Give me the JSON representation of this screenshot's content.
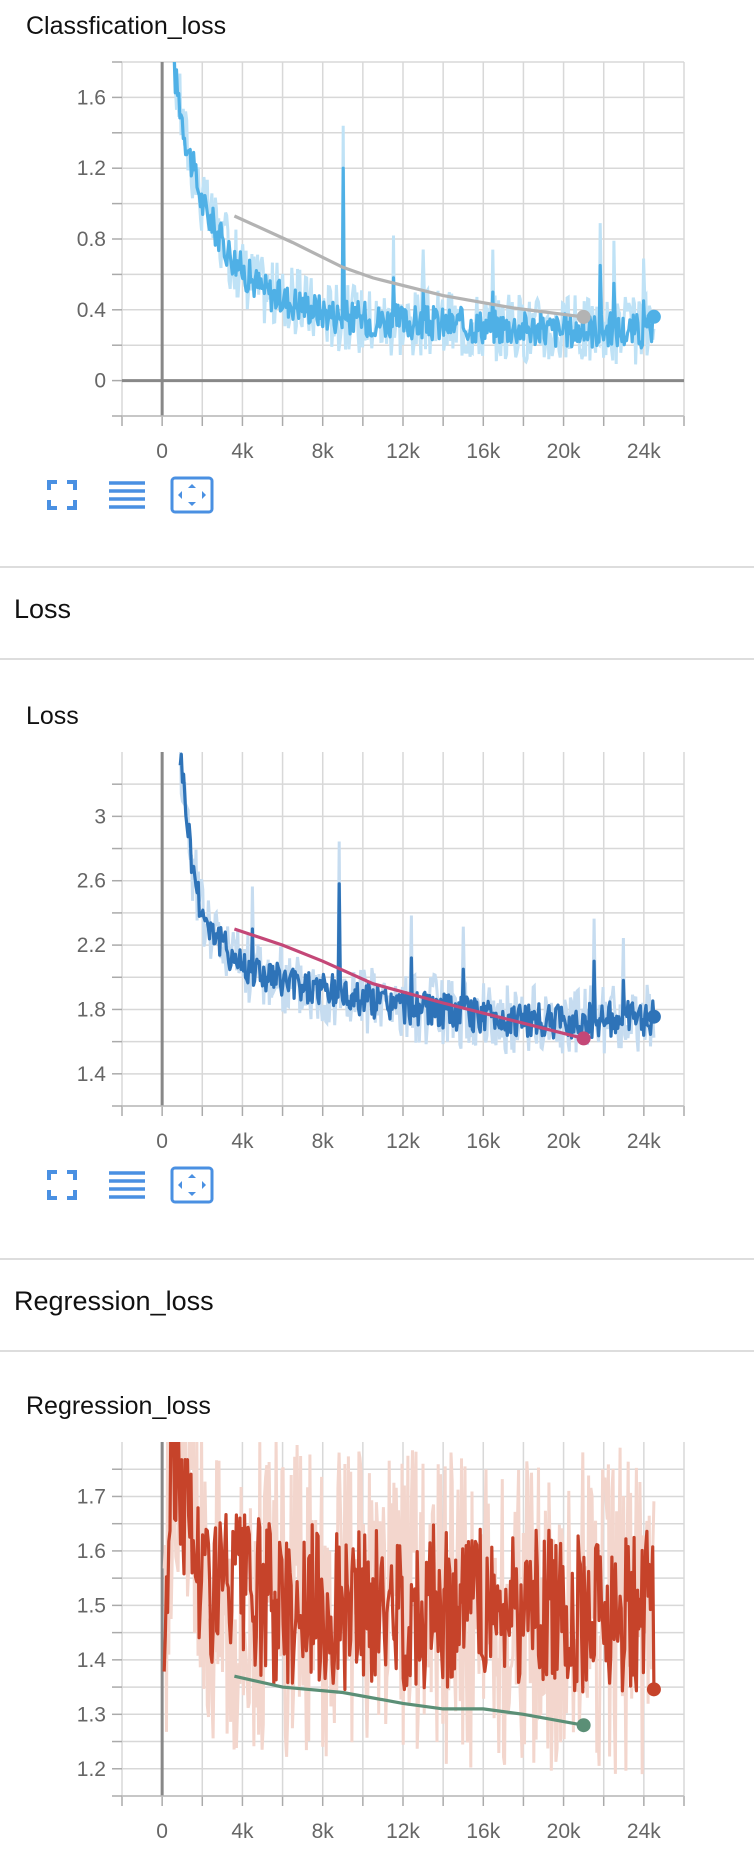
{
  "sections": [
    {
      "title": ""
    },
    {
      "title": "Loss"
    },
    {
      "title": "Regression_loss"
    }
  ],
  "chart_data": [
    {
      "type": "line",
      "title": "Classfication_loss",
      "x_ticks": [
        "0",
        "4k",
        "8k",
        "12k",
        "16k",
        "20k",
        "24k"
      ],
      "y_ticks": [
        "0",
        "0.4",
        "0.8",
        "1.2",
        "1.6"
      ],
      "ylim": [
        -0.2,
        1.8
      ],
      "xlim": [
        -2000,
        26000
      ],
      "colors": {
        "raw": "#4fb0e6",
        "faint": "#bfe2f6",
        "comparison": "#b3b3b3"
      },
      "series": [
        {
          "values": [
            [
              600,
              1.75
            ],
            [
              1200,
              1.35
            ],
            [
              2000,
              1.0
            ],
            [
              3000,
              0.78
            ],
            [
              4000,
              0.62
            ],
            [
              5000,
              0.52
            ],
            [
              6000,
              0.46
            ],
            [
              7000,
              0.43
            ],
            [
              8000,
              0.39
            ],
            [
              9000,
              0.36
            ],
            [
              10000,
              0.35
            ],
            [
              12000,
              0.33
            ],
            [
              14000,
              0.32
            ],
            [
              16000,
              0.31
            ],
            [
              18000,
              0.3
            ],
            [
              20000,
              0.28
            ],
            [
              22000,
              0.29
            ],
            [
              24000,
              0.28
            ],
            [
              24500,
              0.28
            ]
          ],
          "spikes": [
            [
              9000,
              1.2
            ],
            [
              11500,
              0.58
            ],
            [
              13000,
              0.5
            ],
            [
              16500,
              0.5
            ],
            [
              21800,
              0.65
            ],
            [
              22500,
              0.55
            ],
            [
              24000,
              0.45
            ]
          ]
        },
        {
          "values": [
            [
              3600,
              0.93
            ],
            [
              6500,
              0.78
            ],
            [
              9000,
              0.64
            ],
            [
              10500,
              0.58
            ],
            [
              14000,
              0.48
            ],
            [
              17500,
              0.41
            ],
            [
              21000,
              0.36
            ]
          ]
        }
      ]
    },
    {
      "type": "line",
      "title": "Loss",
      "x_ticks": [
        "0",
        "4k",
        "8k",
        "12k",
        "16k",
        "20k",
        "24k"
      ],
      "y_ticks": [
        "1.4",
        "1.8",
        "2.2",
        "2.6",
        "3"
      ],
      "ylim": [
        1.2,
        3.4
      ],
      "xlim": [
        -2000,
        26000
      ],
      "colors": {
        "raw": "#2e73b8",
        "faint": "#c6dcf0",
        "comparison": "#c44777"
      },
      "series": [
        {
          "values": [
            [
              900,
              3.4
            ],
            [
              1500,
              2.7
            ],
            [
              2000,
              2.4
            ],
            [
              3000,
              2.2
            ],
            [
              4000,
              2.08
            ],
            [
              6000,
              1.97
            ],
            [
              8000,
              1.92
            ],
            [
              10000,
              1.87
            ],
            [
              12000,
              1.82
            ],
            [
              14000,
              1.79
            ],
            [
              16000,
              1.76
            ],
            [
              18000,
              1.73
            ],
            [
              20000,
              1.72
            ],
            [
              22000,
              1.74
            ],
            [
              24000,
              1.74
            ],
            [
              24500,
              1.76
            ]
          ],
          "spikes": [
            [
              8800,
              2.58
            ],
            [
              4500,
              2.3
            ],
            [
              12400,
              2.12
            ],
            [
              15000,
              2.05
            ],
            [
              21500,
              2.1
            ],
            [
              23000,
              1.98
            ]
          ]
        },
        {
          "values": [
            [
              3600,
              2.3
            ],
            [
              6000,
              2.2
            ],
            [
              8000,
              2.1
            ],
            [
              10500,
              1.96
            ],
            [
              14000,
              1.84
            ],
            [
              17500,
              1.73
            ],
            [
              21000,
              1.62
            ]
          ]
        }
      ]
    },
    {
      "type": "line",
      "title": "Regression_loss",
      "x_ticks": [
        "0",
        "4k",
        "8k",
        "12k",
        "16k",
        "20k",
        "24k"
      ],
      "y_ticks": [
        "1.2",
        "1.3",
        "1.4",
        "1.5",
        "1.6",
        "1.7"
      ],
      "ylim": [
        1.15,
        1.8
      ],
      "xlim": [
        -2000,
        26000
      ],
      "colors": {
        "raw": "#c6432a",
        "faint": "#f3d6cd",
        "comparison": "#5b8f76"
      },
      "series": [
        {
          "values": [
            [
              100,
              1.42
            ],
            [
              500,
              1.8
            ],
            [
              2000,
              1.55
            ],
            [
              4000,
              1.52
            ],
            [
              6000,
              1.5
            ],
            [
              8000,
              1.5
            ],
            [
              10000,
              1.49
            ],
            [
              12000,
              1.49
            ],
            [
              14000,
              1.5
            ],
            [
              16000,
              1.5
            ],
            [
              18000,
              1.49
            ],
            [
              20000,
              1.49
            ],
            [
              22000,
              1.49
            ],
            [
              24000,
              1.49
            ],
            [
              24500,
              1.48
            ]
          ],
          "amplitude": 0.15
        },
        {
          "values": [
            [
              3600,
              1.37
            ],
            [
              6000,
              1.35
            ],
            [
              9000,
              1.34
            ],
            [
              12000,
              1.32
            ],
            [
              14000,
              1.31
            ],
            [
              16000,
              1.31
            ],
            [
              18000,
              1.3
            ],
            [
              21000,
              1.28
            ]
          ]
        }
      ]
    }
  ]
}
